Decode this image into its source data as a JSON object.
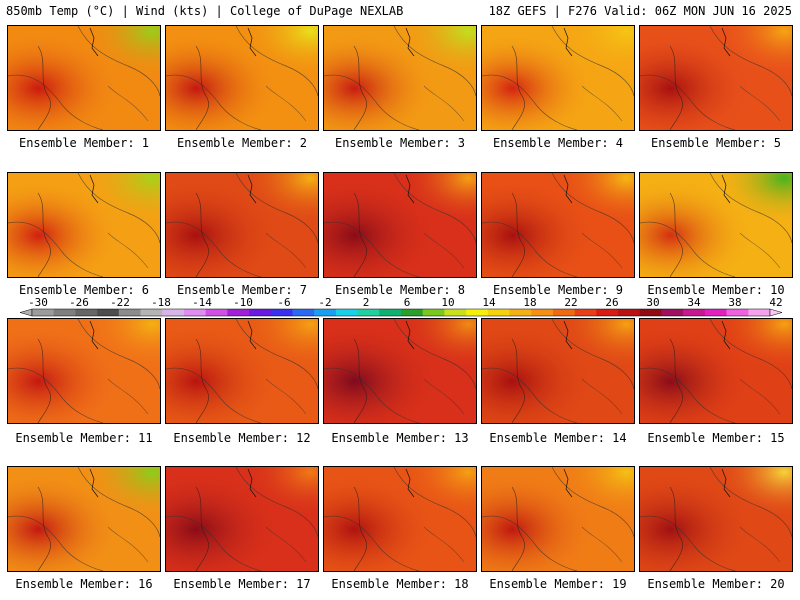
{
  "header": {
    "left": "850mb Temp (°C) | Wind (kts) | College of DuPage NEXLAB",
    "right": "18Z GEFS | F276 Valid: 06Z MON JUN 16 2025"
  },
  "panels": [
    {
      "label": "Ensemble Member: 1",
      "tint": "#f28a12",
      "hot": "#cc1a10",
      "cool": "#9acd1a"
    },
    {
      "label": "Ensemble Member: 2",
      "tint": "#f39011",
      "hot": "#c41812",
      "cool": "#e8e01a"
    },
    {
      "label": "Ensemble Member: 3",
      "tint": "#f39a14",
      "hot": "#c81c12",
      "cool": "#bfe01e"
    },
    {
      "label": "Ensemble Member: 4",
      "tint": "#f5a514",
      "hot": "#d42412",
      "cool": "#f5c514"
    },
    {
      "label": "Ensemble Member: 5",
      "tint": "#e8501a",
      "hot": "#a81010",
      "cool": "#f5a514"
    },
    {
      "label": "Ensemble Member: 6",
      "tint": "#f5a014",
      "hot": "#d02010",
      "cool": "#a8d21a"
    },
    {
      "label": "Ensemble Member: 7",
      "tint": "#e04a16",
      "hot": "#a81010",
      "cool": "#f5b014"
    },
    {
      "label": "Ensemble Member: 8",
      "tint": "#d8301a",
      "hot": "#8a0c18",
      "cool": "#f5a014"
    },
    {
      "label": "Ensemble Member: 9",
      "tint": "#e85016",
      "hot": "#a81010",
      "cool": "#f5b814"
    },
    {
      "label": "Ensemble Member: 10",
      "tint": "#f5b014",
      "hot": "#d43012",
      "cool": "#48b41e"
    },
    {
      "label": "Ensemble Member: 11",
      "tint": "#f07018",
      "hot": "#c41812",
      "cool": "#f5b014"
    },
    {
      "label": "Ensemble Member: 12",
      "tint": "#e85a16",
      "hot": "#b81410",
      "cool": "#f5a014"
    },
    {
      "label": "Ensemble Member: 13",
      "tint": "#d8301a",
      "hot": "#7e0a1e",
      "cool": "#f08a14"
    },
    {
      "label": "Ensemble Member: 14",
      "tint": "#e04816",
      "hot": "#a81010",
      "cool": "#f5a014"
    },
    {
      "label": "Ensemble Member: 15",
      "tint": "#e04016",
      "hot": "#8a0c18",
      "cool": "#f5a014"
    },
    {
      "label": "Ensemble Member: 16",
      "tint": "#f29016",
      "hot": "#c41812",
      "cool": "#8ccd1a"
    },
    {
      "label": "Ensemble Member: 17",
      "tint": "#d8301a",
      "hot": "#8a0c18",
      "cool": "#f07a16"
    },
    {
      "label": "Ensemble Member: 18",
      "tint": "#e85416",
      "hot": "#b01210",
      "cool": "#f5a014"
    },
    {
      "label": "Ensemble Member: 19",
      "tint": "#f07c16",
      "hot": "#c01810",
      "cool": "#f5c014"
    },
    {
      "label": "Ensemble Member: 20",
      "tint": "#e04816",
      "hot": "#a01012",
      "cool": "#f5d23a"
    }
  ],
  "colorbar": {
    "tick_labels": [
      "-30",
      "-26",
      "-22",
      "-18",
      "-14",
      "-10",
      "-6",
      "-2",
      "2",
      "6",
      "10",
      "14",
      "18",
      "22",
      "26",
      "30",
      "34",
      "38",
      "42"
    ],
    "colors": [
      "#9c9c9c",
      "#7f7f7f",
      "#666666",
      "#4d4d4d",
      "#8c8c8c",
      "#b4b4b4",
      "#d8b4e8",
      "#e08cf0",
      "#d050e8",
      "#a020d8",
      "#6a1ae0",
      "#3a30f0",
      "#2a6af0",
      "#1aa0f0",
      "#18d0e8",
      "#20d0a0",
      "#10b070",
      "#2aa028",
      "#78c81e",
      "#c8e01e",
      "#f5f00a",
      "#f5d20c",
      "#f5b014",
      "#f59014",
      "#f06a14",
      "#e84016",
      "#d81c14",
      "#b81212",
      "#900c12",
      "#a01060",
      "#c81890",
      "#e020c0",
      "#f060e0",
      "#f8a0f0"
    ]
  }
}
